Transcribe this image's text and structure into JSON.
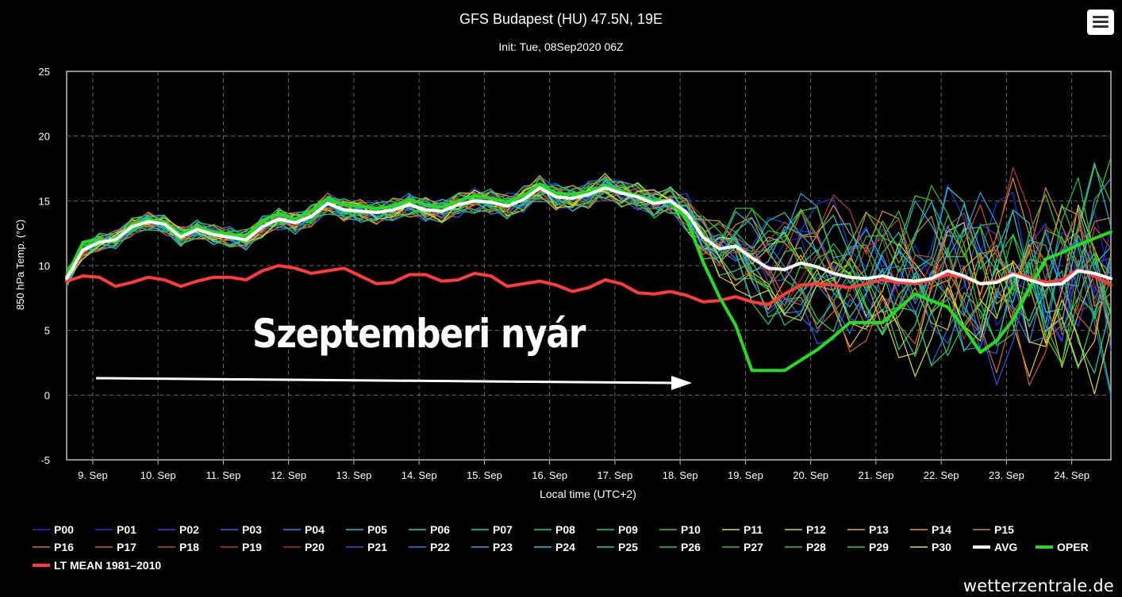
{
  "chart_data": {
    "type": "line",
    "title": "GFS Budapest (HU) 47.5N, 19E",
    "subtitle": "Init: Tue, 08Sep2020 06Z",
    "xlabel": "Local time (UTC+2)",
    "ylabel": "850 hPa Temp. (°C)",
    "ylim": [
      -5,
      25
    ],
    "yticks": [
      -5,
      0,
      5,
      10,
      15,
      20,
      25
    ],
    "xlim": [
      8.6,
      24.6
    ],
    "xticks": [
      9,
      10,
      11,
      12,
      13,
      14,
      15,
      16,
      17,
      18,
      19,
      20,
      21,
      22,
      23,
      24
    ],
    "xtick_labels": [
      "9. Sep",
      "10. Sep",
      "11. Sep",
      "12. Sep",
      "13. Sep",
      "14. Sep",
      "15. Sep",
      "16. Sep",
      "17. Sep",
      "18. Sep",
      "19. Sep",
      "20. Sep",
      "21. Sep",
      "22. Sep",
      "23. Sep",
      "24. Sep"
    ],
    "x_unit": "day of September 2020 (local time)",
    "grid": true,
    "legend_position": "bottom",
    "annotation": "Szeptemberi nyár",
    "series": [
      {
        "name": "AVG",
        "color": "#ffffff",
        "width": 4,
        "x": [
          8.6,
          8.85,
          9.1,
          9.35,
          9.6,
          9.85,
          10.1,
          10.35,
          10.6,
          10.85,
          11.1,
          11.35,
          11.6,
          11.85,
          12.1,
          12.35,
          12.6,
          12.85,
          13.1,
          13.35,
          13.6,
          13.85,
          14.1,
          14.35,
          14.6,
          14.85,
          15.1,
          15.35,
          15.6,
          15.85,
          16.1,
          16.35,
          16.6,
          16.85,
          17.1,
          17.35,
          17.6,
          17.85,
          18.1,
          18.35,
          18.6,
          18.85,
          19.1,
          19.35,
          19.6,
          19.85,
          20.1,
          20.35,
          20.6,
          20.85,
          21.1,
          21.35,
          21.6,
          21.85,
          22.1,
          22.35,
          22.6,
          22.85,
          23.1,
          23.35,
          23.6,
          23.85,
          24.1,
          24.35,
          24.6
        ],
        "y": [
          9.0,
          11.2,
          11.8,
          12.0,
          13.0,
          13.4,
          13.2,
          12.2,
          12.8,
          12.4,
          12.2,
          12.0,
          13.0,
          13.6,
          13.3,
          13.8,
          14.8,
          14.3,
          14.2,
          14.1,
          14.3,
          14.7,
          14.3,
          14.2,
          14.7,
          15.0,
          14.9,
          14.6,
          15.1,
          16.0,
          15.3,
          15.2,
          15.5,
          16.0,
          15.6,
          15.3,
          14.8,
          15.0,
          14.1,
          12.2,
          11.3,
          11.5,
          10.6,
          9.8,
          9.7,
          10.2,
          9.9,
          9.4,
          9.1,
          9.0,
          9.2,
          8.9,
          8.8,
          9.0,
          9.6,
          9.2,
          8.6,
          8.7,
          9.3,
          8.9,
          8.5,
          8.6,
          9.6,
          9.4,
          9.0
        ]
      },
      {
        "name": "OPER",
        "color": "#22dd22",
        "width": 4,
        "x": [
          8.6,
          8.85,
          9.1,
          9.35,
          9.6,
          9.85,
          10.1,
          10.35,
          10.6,
          10.85,
          11.1,
          11.35,
          11.6,
          11.85,
          12.1,
          12.35,
          12.6,
          12.85,
          13.1,
          13.35,
          13.6,
          13.85,
          14.1,
          14.35,
          14.6,
          14.85,
          15.1,
          15.35,
          15.6,
          15.85,
          16.1,
          16.35,
          16.6,
          16.85,
          17.1,
          17.35,
          17.6,
          17.85,
          18.1,
          18.35,
          18.6,
          18.85,
          19.1,
          19.6,
          20.1,
          20.35,
          20.6,
          20.85,
          21.1,
          21.6,
          22.1,
          22.35,
          22.6,
          22.85,
          23.1,
          23.35,
          23.6,
          23.85,
          24.1,
          24.35,
          24.6
        ],
        "y": [
          9.2,
          11.8,
          12.0,
          11.8,
          13.2,
          13.5,
          13.4,
          12.4,
          13.0,
          12.6,
          12.4,
          12.3,
          13.5,
          14.0,
          13.6,
          14.2,
          15.2,
          14.7,
          14.6,
          14.4,
          14.6,
          15.1,
          14.7,
          14.5,
          15.0,
          15.4,
          15.2,
          14.9,
          15.4,
          16.3,
          15.6,
          15.5,
          15.7,
          16.2,
          15.7,
          15.4,
          15.0,
          15.0,
          13.6,
          10.3,
          7.6,
          5.4,
          1.9,
          1.9,
          3.5,
          4.5,
          5.6,
          5.6,
          5.6,
          7.8,
          6.8,
          5.2,
          3.3,
          4.2,
          5.8,
          8.2,
          10.5,
          11.0,
          11.6,
          12.1,
          12.6
        ]
      },
      {
        "name": "LT MEAN 1981–2010",
        "color": "#ff3b3b",
        "width": 4,
        "x": [
          8.6,
          8.85,
          9.1,
          9.35,
          9.6,
          9.85,
          10.1,
          10.35,
          10.6,
          10.85,
          11.1,
          11.35,
          11.6,
          11.85,
          12.1,
          12.35,
          12.6,
          12.85,
          13.1,
          13.35,
          13.6,
          13.85,
          14.1,
          14.35,
          14.6,
          14.85,
          15.1,
          15.35,
          15.6,
          15.85,
          16.1,
          16.35,
          16.6,
          16.85,
          17.1,
          17.35,
          17.6,
          17.85,
          18.1,
          18.35,
          18.6,
          18.85,
          19.1,
          19.35,
          19.6,
          19.85,
          20.1,
          20.35,
          20.6,
          20.85,
          21.1,
          21.35,
          21.6,
          21.85,
          22.1,
          22.35,
          22.6,
          22.85,
          23.1,
          23.35,
          23.6,
          23.85,
          24.1,
          24.35,
          24.6
        ],
        "y": [
          8.8,
          9.2,
          9.1,
          8.4,
          8.7,
          9.1,
          8.9,
          8.4,
          8.8,
          9.1,
          9.1,
          8.9,
          9.6,
          10.0,
          9.8,
          9.4,
          9.6,
          9.8,
          9.2,
          8.6,
          8.7,
          9.3,
          9.3,
          8.8,
          8.9,
          9.4,
          9.2,
          8.4,
          8.6,
          8.8,
          8.5,
          8.0,
          8.3,
          8.9,
          8.6,
          7.9,
          7.8,
          8.0,
          7.7,
          7.2,
          7.3,
          7.6,
          7.2,
          7.0,
          7.8,
          8.5,
          8.6,
          8.5,
          8.3,
          8.6,
          8.9,
          8.7,
          8.6,
          8.9,
          9.3,
          9.1,
          8.6,
          8.8,
          9.4,
          9.1,
          8.7,
          8.9,
          9.7,
          9.2,
          8.5
        ]
      }
    ],
    "legend": [
      {
        "name": "P00",
        "color": "#1e2bd8"
      },
      {
        "name": "P01",
        "color": "#2036e0"
      },
      {
        "name": "P02",
        "color": "#2448ec"
      },
      {
        "name": "P03",
        "color": "#2c66f2"
      },
      {
        "name": "P04",
        "color": "#2a86f0"
      },
      {
        "name": "P05",
        "color": "#22b7e8"
      },
      {
        "name": "P06",
        "color": "#1ed4b0"
      },
      {
        "name": "P07",
        "color": "#1cd88c"
      },
      {
        "name": "P08",
        "color": "#20d468"
      },
      {
        "name": "P09",
        "color": "#22d046"
      },
      {
        "name": "P10",
        "color": "#36d226"
      },
      {
        "name": "P11",
        "color": "#e4e21e"
      },
      {
        "name": "P12",
        "color": "#e2cf1e"
      },
      {
        "name": "P13",
        "color": "#e0b422"
      },
      {
        "name": "P14",
        "color": "#e09828"
      },
      {
        "name": "P15",
        "color": "#e07f2c"
      },
      {
        "name": "P16",
        "color": "#dc6a2e"
      },
      {
        "name": "P17",
        "color": "#d85a2e"
      },
      {
        "name": "P18",
        "color": "#d0472e"
      },
      {
        "name": "P19",
        "color": "#c4382c"
      },
      {
        "name": "P20",
        "color": "#b62a28"
      },
      {
        "name": "P21",
        "color": "#2458ee"
      },
      {
        "name": "P22",
        "color": "#2a7ef2"
      },
      {
        "name": "P23",
        "color": "#28a6ea"
      },
      {
        "name": "P24",
        "color": "#22c4d8"
      },
      {
        "name": "P25",
        "color": "#1ed0a0"
      },
      {
        "name": "P26",
        "color": "#1ecf74"
      },
      {
        "name": "P27",
        "color": "#22c84a"
      },
      {
        "name": "P28",
        "color": "#2ccf26"
      },
      {
        "name": "P29",
        "color": "#3cd41e"
      },
      {
        "name": "P30",
        "color": "#e6e01c"
      },
      {
        "name": "AVG",
        "color": "#ffffff",
        "thick": true
      },
      {
        "name": "OPER",
        "color": "#22dd22",
        "thick": true
      },
      {
        "name": "LT MEAN 1981–2010",
        "color": "#ff3b3b",
        "thick": true
      }
    ]
  },
  "watermark": "wetterzentrale.de"
}
